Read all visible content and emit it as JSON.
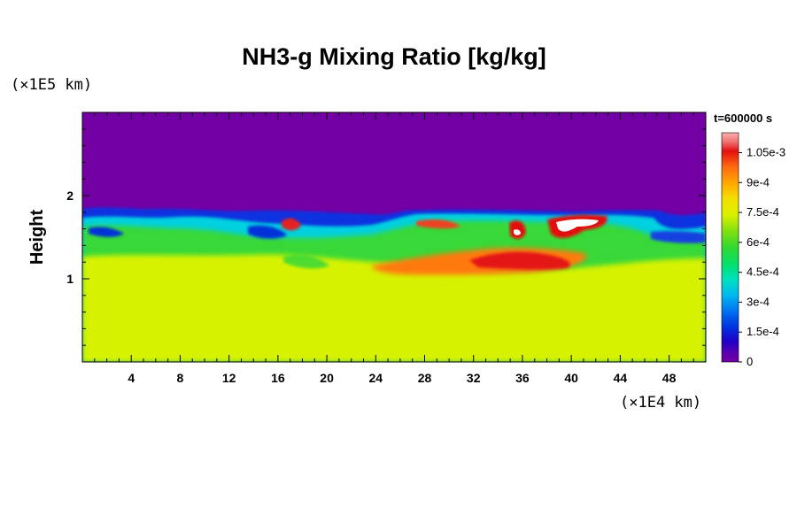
{
  "chart_data": {
    "type": "heatmap",
    "title": "NH3-g Mixing Ratio [kg/kg]",
    "ylabel": "Height",
    "x_unit": "(×1E4 km)",
    "y_unit": "(×1E5 km)",
    "time_label": "t=600000 s",
    "x_ticks": [
      "4",
      "8",
      "12",
      "16",
      "20",
      "24",
      "28",
      "32",
      "36",
      "40",
      "44",
      "48"
    ],
    "y_ticks": [
      "1",
      "2"
    ],
    "xlim": [
      0,
      51
    ],
    "ylim": [
      0,
      3
    ],
    "colorbar_ticks": [
      "0",
      "1.5e-4",
      "3e-4",
      "4.5e-4",
      "6e-4",
      "7.5e-4",
      "9e-4",
      "1.05e-3"
    ],
    "colorbar_range": [
      0,
      0.00115
    ],
    "colors": {
      "upper_layer": "#7300a5",
      "lower_layer": "#d7f200",
      "blue": "#1030e0",
      "cyan": "#00d8e0",
      "green": "#38d838",
      "orange": "#ff6a10",
      "red": "#e41010",
      "peak": "#ffffff"
    }
  }
}
